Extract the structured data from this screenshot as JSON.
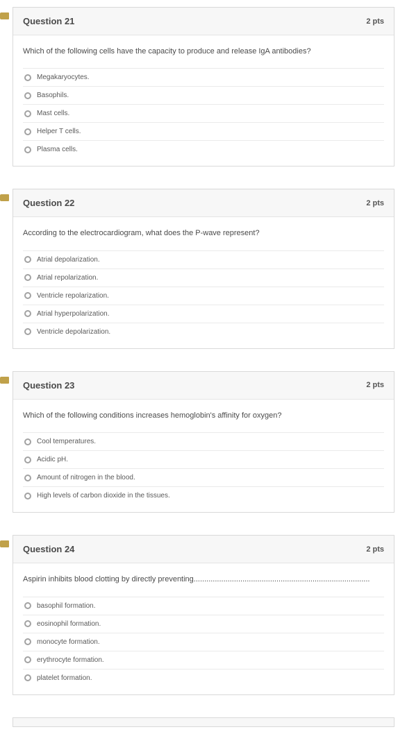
{
  "questions": [
    {
      "number": "Question 21",
      "pts": "2 pts",
      "prompt": "Which of the following cells have the capacity to produce and release IgA antibodies?",
      "options": [
        "Megakaryocytes.",
        "Basophils.",
        "Mast cells.",
        "Helper T cells.",
        "Plasma cells."
      ]
    },
    {
      "number": "Question 22",
      "pts": "2 pts",
      "prompt": "According to the electrocardiogram, what does the P-wave represent?",
      "options": [
        "Atrial depolarization.",
        "Atrial repolarization.",
        "Ventricle repolarization.",
        "Atrial hyperpolarization.",
        "Ventricle depolarization."
      ]
    },
    {
      "number": "Question 23",
      "pts": "2 pts",
      "prompt": "Which of the following conditions increases hemoglobin's affinity for oxygen?",
      "options": [
        "Cool temperatures.",
        "Acidic pH.",
        "Amount of nitrogen in the blood.",
        "High levels of carbon dioxide in the tissues."
      ]
    },
    {
      "number": "Question 24",
      "pts": "2 pts",
      "prompt": "Aspirin inhibits blood clotting by directly preventing...................................................................................",
      "options": [
        "basophil formation.",
        "eosinophil formation.",
        "monocyte formation.",
        "erythrocyte formation.",
        "platelet formation."
      ]
    }
  ]
}
